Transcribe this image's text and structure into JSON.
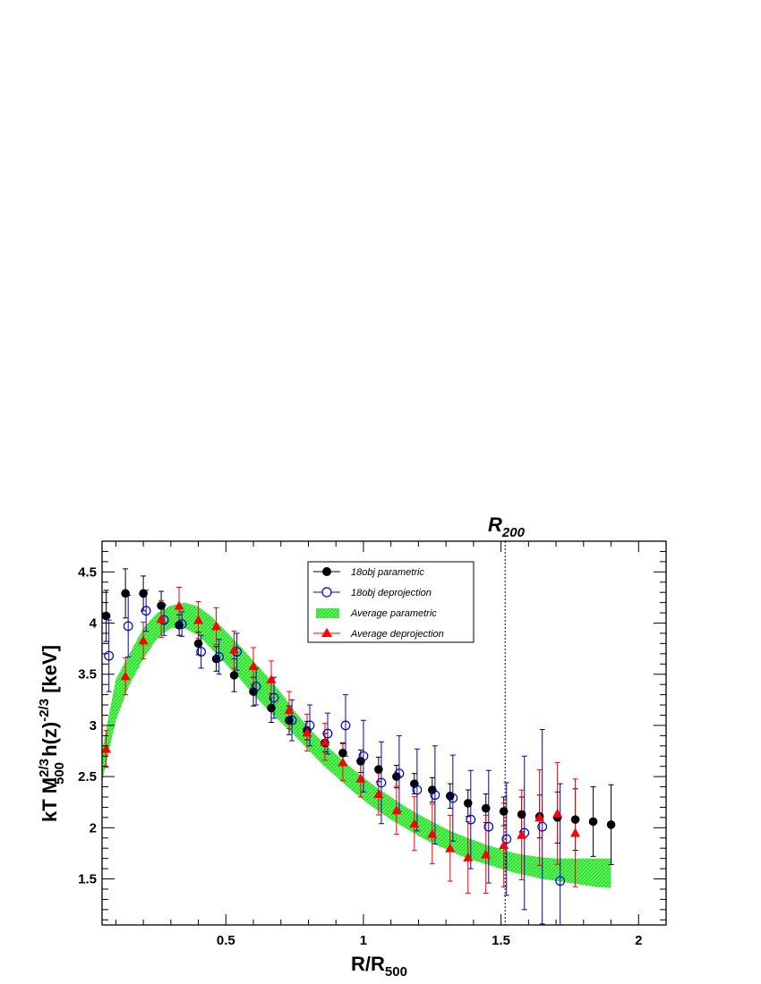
{
  "chart_data": {
    "type": "scatter",
    "title": "",
    "xlabel": {
      "main": "R/R",
      "sub": "500"
    },
    "ylabel": {
      "p1": "kT M",
      "sub1": "500",
      "sup1": "2/3",
      "p2": " h(z)",
      "sup2": "-2/3",
      "p3": " [keV]"
    },
    "xlim": [
      0.05,
      2.1
    ],
    "ylim": [
      1.05,
      4.8
    ],
    "xticks": [
      0.5,
      1,
      1.5,
      2
    ],
    "xtick_labels": [
      "0.5",
      "1",
      "1.5",
      "2"
    ],
    "yticks": [
      1.5,
      2,
      2.5,
      3,
      3.5,
      4,
      4.5
    ],
    "ytick_labels": [
      "1.5",
      "2",
      "2.5",
      "3",
      "3.5",
      "4",
      "4.5"
    ],
    "vline": {
      "x": 1.515,
      "label": "R",
      "label_sub": "200"
    },
    "legend": {
      "position": "top-center",
      "entries": [
        "18obj parametric",
        "18obj deprojection",
        "Average parametric",
        "Average deprojection"
      ]
    },
    "series": [
      {
        "name": "18obj parametric",
        "marker": "filled-circle",
        "color": "#000000",
        "x": [
          0.065,
          0.135,
          0.2,
          0.265,
          0.33,
          0.4,
          0.465,
          0.53,
          0.6,
          0.665,
          0.73,
          0.795,
          0.86,
          0.925,
          0.99,
          1.055,
          1.12,
          1.185,
          1.25,
          1.315,
          1.38,
          1.445,
          1.51,
          1.575,
          1.64,
          1.705,
          1.77,
          1.835,
          1.9
        ],
        "y": [
          4.07,
          4.29,
          4.29,
          4.17,
          3.98,
          3.8,
          3.65,
          3.49,
          3.33,
          3.17,
          3.05,
          2.95,
          2.83,
          2.73,
          2.65,
          2.57,
          2.5,
          2.43,
          2.37,
          2.31,
          2.24,
          2.19,
          2.16,
          2.13,
          2.11,
          2.1,
          2.08,
          2.06,
          2.03
        ],
        "err": [
          0.25,
          0.24,
          0.17,
          0.14,
          0.1,
          0.11,
          0.12,
          0.16,
          0.14,
          0.14,
          0.14,
          0.09,
          0.09,
          0.1,
          0.11,
          0.12,
          0.11,
          0.1,
          0.12,
          0.12,
          0.13,
          0.14,
          0.14,
          0.17,
          0.21,
          0.25,
          0.3,
          0.34,
          0.39
        ]
      },
      {
        "name": "18obj deprojection",
        "marker": "open-circle",
        "color": "#0000cc",
        "x": [
          0.075,
          0.145,
          0.21,
          0.275,
          0.34,
          0.41,
          0.475,
          0.54,
          0.61,
          0.675,
          0.74,
          0.805,
          0.87,
          0.935,
          1.0,
          1.065,
          1.13,
          1.195,
          1.26,
          1.325,
          1.39,
          1.455,
          1.52,
          1.585,
          1.65,
          1.715
        ],
        "y": [
          3.68,
          3.97,
          4.12,
          4.03,
          3.99,
          3.72,
          3.67,
          3.72,
          3.38,
          3.27,
          3.05,
          3.0,
          2.92,
          3.0,
          2.7,
          2.44,
          2.53,
          2.37,
          2.32,
          2.29,
          2.08,
          2.01,
          1.89,
          1.95,
          2.01,
          1.48
        ],
        "err": [
          0.35,
          0.3,
          0.2,
          0.15,
          0.12,
          0.16,
          0.17,
          0.18,
          0.18,
          0.2,
          0.2,
          0.2,
          0.2,
          0.3,
          0.35,
          0.4,
          0.37,
          0.4,
          0.48,
          0.42,
          0.48,
          0.55,
          0.55,
          0.75,
          0.95,
          0.95
        ]
      },
      {
        "name": "Average deprojection",
        "marker": "triangle",
        "color": "#ff0000",
        "x": [
          0.065,
          0.135,
          0.2,
          0.265,
          0.33,
          0.4,
          0.465,
          0.53,
          0.6,
          0.665,
          0.73,
          0.795,
          0.86,
          0.925,
          0.99,
          1.055,
          1.12,
          1.185,
          1.25,
          1.315,
          1.38,
          1.445,
          1.51,
          1.575,
          1.64,
          1.705,
          1.77
        ],
        "y": [
          2.77,
          3.48,
          3.83,
          4.04,
          4.17,
          4.03,
          3.97,
          3.74,
          3.58,
          3.45,
          3.15,
          2.93,
          2.84,
          2.64,
          2.48,
          2.33,
          2.17,
          2.04,
          1.94,
          1.8,
          1.71,
          1.74,
          1.83,
          1.93,
          2.1,
          2.14,
          1.95
        ]
      }
    ],
    "band": {
      "name": "Average parametric",
      "color": "#33ee33",
      "x": [
        0.05,
        0.1,
        0.15,
        0.2,
        0.25,
        0.3,
        0.35,
        0.4,
        0.45,
        0.5,
        0.55,
        0.6,
        0.65,
        0.7,
        0.75,
        0.8,
        0.85,
        0.9,
        0.95,
        1.0,
        1.05,
        1.1,
        1.15,
        1.2,
        1.25,
        1.3,
        1.35,
        1.4,
        1.45,
        1.5,
        1.55,
        1.6,
        1.65,
        1.7,
        1.75,
        1.8,
        1.85,
        1.9
      ],
      "low": [
        2.45,
        3.05,
        3.4,
        3.65,
        3.85,
        3.95,
        3.95,
        3.88,
        3.74,
        3.6,
        3.46,
        3.3,
        3.16,
        3.03,
        2.9,
        2.76,
        2.62,
        2.5,
        2.38,
        2.27,
        2.17,
        2.08,
        2.0,
        1.92,
        1.85,
        1.79,
        1.73,
        1.68,
        1.64,
        1.6,
        1.56,
        1.53,
        1.5,
        1.48,
        1.46,
        1.44,
        1.42,
        1.41
      ],
      "high": [
        2.75,
        3.45,
        3.7,
        3.95,
        4.1,
        4.17,
        4.2,
        4.16,
        4.06,
        3.92,
        3.78,
        3.63,
        3.48,
        3.32,
        3.14,
        2.98,
        2.84,
        2.72,
        2.6,
        2.49,
        2.39,
        2.3,
        2.21,
        2.13,
        2.06,
        1.99,
        1.93,
        1.88,
        1.83,
        1.79,
        1.75,
        1.73,
        1.71,
        1.7,
        1.7,
        1.7,
        1.7,
        1.7
      ]
    }
  }
}
